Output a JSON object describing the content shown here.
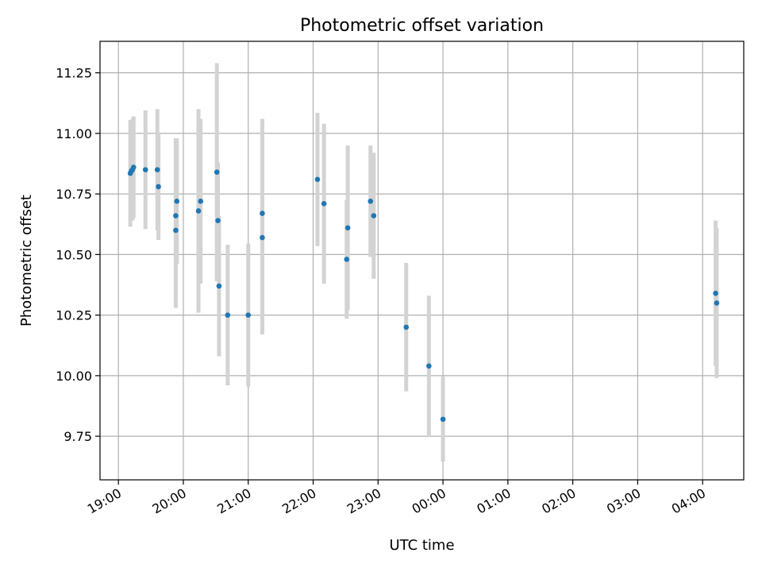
{
  "chart_data": {
    "type": "scatter",
    "title": "Photometric offset variation",
    "xlabel": "UTC time",
    "ylabel": "Photometric offset",
    "x_ticks": [
      "19:00",
      "20:00",
      "21:00",
      "22:00",
      "23:00",
      "00:00",
      "01:00",
      "02:00",
      "03:00",
      "04:00"
    ],
    "y_ticks": [
      "9.75",
      "10.00",
      "10.25",
      "10.50",
      "10.75",
      "11.00",
      "11.25"
    ],
    "xlim": [
      "18:43",
      "04:38"
    ],
    "ylim": [
      9.57,
      11.38
    ],
    "grid": true,
    "point_color": "#1f77b4",
    "errorbar_color": "#d3d3d3",
    "points": [
      {
        "x": "19:11",
        "y": 10.835,
        "yerr": 0.22
      },
      {
        "x": "19:12",
        "y": 10.845,
        "yerr": 0.2
      },
      {
        "x": "19:13",
        "y": 10.85,
        "yerr": 0.21
      },
      {
        "x": "19:14",
        "y": 10.86,
        "yerr": 0.21
      },
      {
        "x": "19:25",
        "y": 10.85,
        "yerr": 0.245
      },
      {
        "x": "19:36",
        "y": 10.85,
        "yerr": 0.25
      },
      {
        "x": "19:37",
        "y": 10.78,
        "yerr": 0.22
      },
      {
        "x": "19:53",
        "y": 10.6,
        "yerr": 0.32
      },
      {
        "x": "19:53",
        "y": 10.66,
        "yerr": 0.32
      },
      {
        "x": "19:54",
        "y": 10.72,
        "yerr": 0.26
      },
      {
        "x": "20:14",
        "y": 10.68,
        "yerr": 0.42
      },
      {
        "x": "20:16",
        "y": 10.72,
        "yerr": 0.34
      },
      {
        "x": "20:31",
        "y": 10.84,
        "yerr": 0.45
      },
      {
        "x": "20:32",
        "y": 10.64,
        "yerr": 0.24
      },
      {
        "x": "20:33",
        "y": 10.37,
        "yerr": 0.29
      },
      {
        "x": "20:41",
        "y": 10.25,
        "yerr": 0.29
      },
      {
        "x": "21:00",
        "y": 10.25,
        "yerr": 0.295
      },
      {
        "x": "21:13",
        "y": 10.57,
        "yerr": 0.4
      },
      {
        "x": "21:13",
        "y": 10.67,
        "yerr": 0.39
      },
      {
        "x": "22:04",
        "y": 10.81,
        "yerr": 0.275
      },
      {
        "x": "22:10",
        "y": 10.71,
        "yerr": 0.33
      },
      {
        "x": "22:31",
        "y": 10.48,
        "yerr": 0.245
      },
      {
        "x": "22:32",
        "y": 10.61,
        "yerr": 0.34
      },
      {
        "x": "22:53",
        "y": 10.72,
        "yerr": 0.23
      },
      {
        "x": "22:56",
        "y": 10.66,
        "yerr": 0.26
      },
      {
        "x": "23:26",
        "y": 10.2,
        "yerr": 0.265
      },
      {
        "x": "23:47",
        "y": 10.04,
        "yerr": 0.29
      },
      {
        "x": "00:00",
        "y": 9.82,
        "yerr": 0.175
      },
      {
        "x": "04:12",
        "y": 10.34,
        "yerr": 0.3
      },
      {
        "x": "04:13",
        "y": 10.3,
        "yerr": 0.31
      }
    ]
  }
}
